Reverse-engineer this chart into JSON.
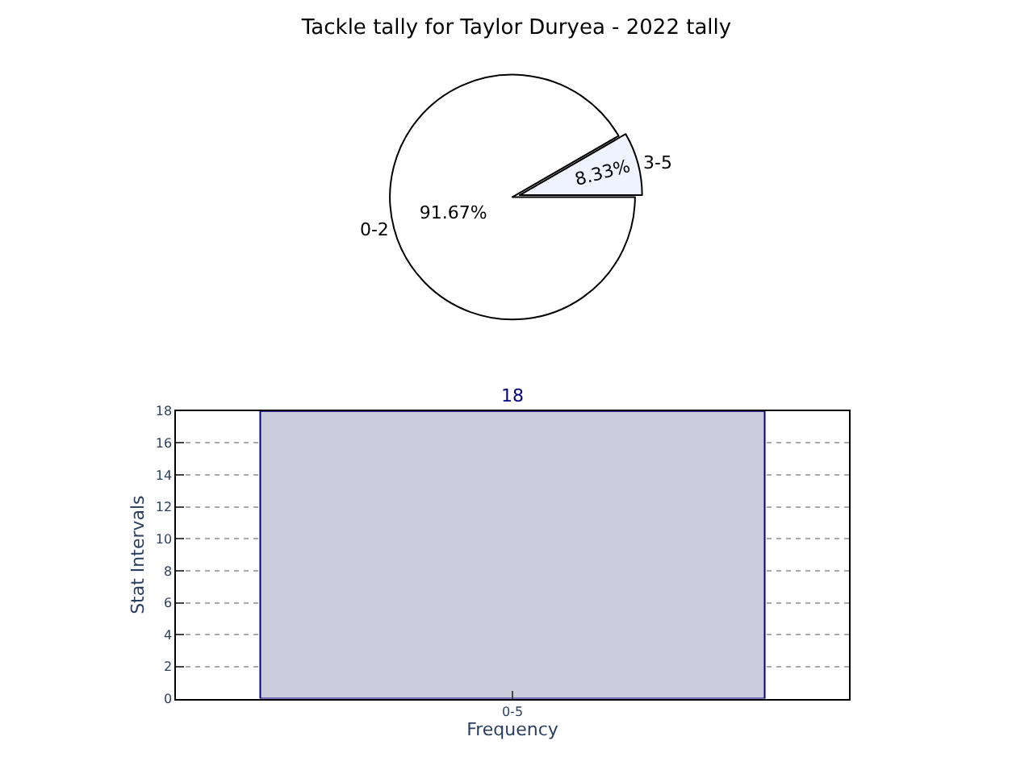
{
  "chart_data": [
    {
      "type": "pie",
      "title": "Tackle tally for Taylor Duryea - 2022 tally",
      "categories": [
        "0-2",
        "3-5"
      ],
      "values": [
        91.67,
        8.33
      ],
      "colors": [
        "#ffffff",
        "#eef3ff"
      ],
      "value_labels": [
        "91.67%",
        "8.33%"
      ]
    },
    {
      "type": "bar",
      "categories": [
        "0-5"
      ],
      "values": [
        18
      ],
      "color": "#ccccdd",
      "xlabel": "Frequency",
      "ylabel": "Stat Intervals",
      "ylim": [
        0,
        18
      ],
      "yticks": [
        0,
        2,
        4,
        6,
        8,
        10,
        12,
        14,
        16,
        18
      ],
      "grid": true,
      "data_labels": true
    }
  ]
}
